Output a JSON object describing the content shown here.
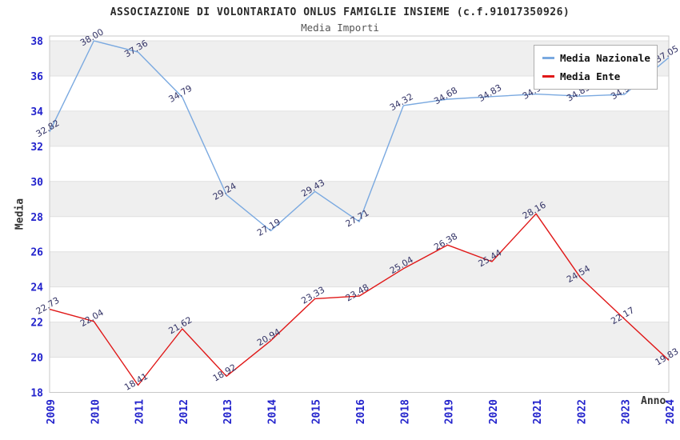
{
  "header": {
    "title": "ASSOCIAZIONE DI VOLONTARIATO ONLUS FAMIGLIE INSIEME (c.f.91017350926)",
    "subtitle": "Media Importi"
  },
  "chart_data": {
    "type": "line",
    "categories": [
      "2009",
      "2010",
      "2011",
      "2012",
      "2013",
      "2014",
      "2015",
      "2016",
      "2018",
      "2019",
      "2020",
      "2021",
      "2022",
      "2023",
      "2024"
    ],
    "series": [
      {
        "name": "Media Nazionale",
        "color": "#7aa9e0",
        "values": [
          32.82,
          38.0,
          37.36,
          34.79,
          29.24,
          27.19,
          29.43,
          27.71,
          34.32,
          34.68,
          34.83,
          34.97,
          34.85,
          34.95,
          37.05
        ]
      },
      {
        "name": "Media Ente",
        "color": "#e01818",
        "values": [
          22.73,
          22.04,
          18.41,
          21.62,
          18.92,
          20.94,
          23.33,
          23.48,
          25.04,
          26.38,
          25.44,
          28.16,
          24.54,
          22.17,
          19.83
        ]
      }
    ],
    "xlabel": "Anno",
    "ylabel": "Media",
    "ylim": [
      18,
      38
    ],
    "ytick_step": 2,
    "grid": true,
    "legend_position": "top-right",
    "band_color": "#efefef",
    "gridline_color": "#e0e0e0",
    "border_color": "#c8c8c8",
    "tick_color": "#2222cc",
    "data_label_color": "#333366"
  }
}
